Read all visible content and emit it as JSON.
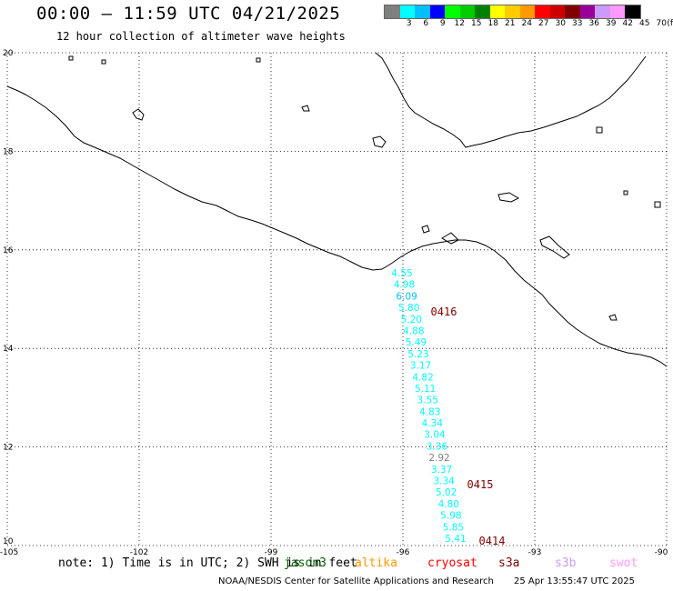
{
  "title": "00:00 – 11:59 UTC 04/21/2025",
  "subtitle": "12 hour collection of altimeter wave heights",
  "legend": {
    "colors": [
      "#7f7f7f",
      "#00ffff",
      "#00bfff",
      "#0000ff",
      "#00ff00",
      "#00cc00",
      "#008000",
      "#ffff00",
      "#ffcc00",
      "#ff9900",
      "#ff0000",
      "#cc0000",
      "#800000",
      "#990099",
      "#cc99ff",
      "#ff99ff",
      "#000000"
    ],
    "labels": [
      "3",
      "6",
      "9",
      "12",
      "15",
      "18",
      "21",
      "24",
      "27",
      "30",
      "33",
      "36",
      "39",
      "42",
      "45",
      "70"
    ],
    "unit": "(ft)"
  },
  "map": {
    "lon_labels": [
      "-105",
      "-102",
      "-99",
      "-96",
      "-93",
      "-90"
    ],
    "lat_labels": [
      "20",
      "18",
      "16",
      "14",
      "12",
      "10"
    ],
    "lon_range": [
      -105,
      -90
    ],
    "lat_range": [
      10,
      20
    ],
    "coastline_color": "#000000",
    "grid": "dotted"
  },
  "observations": [
    {
      "value": "4.55",
      "color": "#00ffff"
    },
    {
      "value": "4.98",
      "color": "#00ffff"
    },
    {
      "value": "6.09",
      "color": "#00bfff"
    },
    {
      "value": "5.80",
      "color": "#00ffff"
    },
    {
      "value": "5.20",
      "color": "#00ffff"
    },
    {
      "value": "4.88",
      "color": "#00ffff"
    },
    {
      "value": "5.49",
      "color": "#00ffff"
    },
    {
      "value": "5.23",
      "color": "#00ffff"
    },
    {
      "value": "3.17",
      "color": "#00ffff"
    },
    {
      "value": "4.82",
      "color": "#00ffff"
    },
    {
      "value": "5.11",
      "color": "#00ffff"
    },
    {
      "value": "3.55",
      "color": "#00ffff"
    },
    {
      "value": "4.83",
      "color": "#00ffff"
    },
    {
      "value": "4.34",
      "color": "#00ffff"
    },
    {
      "value": "3.04",
      "color": "#00ffff"
    },
    {
      "value": "3.36",
      "color": "#00ffff"
    },
    {
      "value": "2.92",
      "color": "#7f7f7f"
    },
    {
      "value": "3.37",
      "color": "#00ffff"
    },
    {
      "value": "3.34",
      "color": "#00ffff"
    },
    {
      "value": "5.02",
      "color": "#00ffff"
    },
    {
      "value": "4.80",
      "color": "#00ffff"
    },
    {
      "value": "5.98",
      "color": "#00ffff"
    },
    {
      "value": "5.85",
      "color": "#00ffff"
    },
    {
      "value": "5.41",
      "color": "#00ffff"
    }
  ],
  "pass_labels": [
    {
      "text": "0416",
      "color": "#800000"
    },
    {
      "text": "0415",
      "color": "#800000"
    },
    {
      "text": "0414",
      "color": "#800000"
    }
  ],
  "note": "note: 1) Time is in UTC; 2) SWH is in feet",
  "satellites": [
    {
      "name": "jason3",
      "color": "#006400"
    },
    {
      "name": "altika",
      "color": "#ff9900"
    },
    {
      "name": "cryosat",
      "color": "#ff0000"
    },
    {
      "name": "s3a",
      "color": "#800000"
    },
    {
      "name": "s3b",
      "color": "#cc99ff"
    },
    {
      "name": "swot",
      "color": "#ff99ff"
    }
  ],
  "footer": {
    "credit": "NOAA/NESDIS Center for Satellite Applications and Research",
    "timestamp": "25 Apr 13:55:47 UTC 2025"
  }
}
